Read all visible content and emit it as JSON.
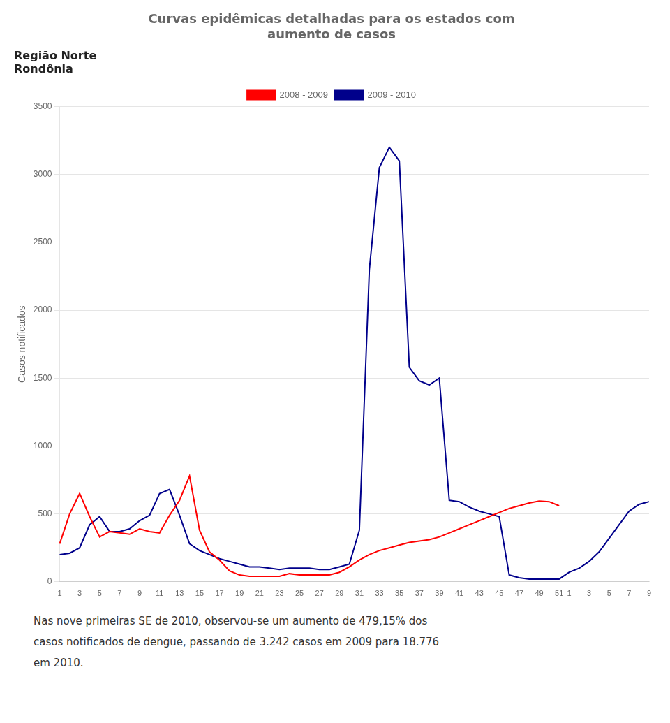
{
  "chart_data": {
    "type": "line",
    "title": [
      "Curvas epidêmicas detalhadas para os estados com",
      "aumento de casos"
    ],
    "subtitle": [
      "Região Norte",
      "Rondônia"
    ],
    "y_label": "Casos notificados",
    "categories": [
      "1",
      null,
      "3",
      null,
      "5",
      null,
      "7",
      null,
      "9",
      null,
      "11",
      null,
      "13",
      null,
      "15",
      null,
      "17",
      null,
      "19",
      null,
      "21",
      null,
      "23",
      null,
      "25",
      null,
      "27",
      null,
      "29",
      null,
      "31",
      null,
      "33",
      null,
      "35",
      null,
      "37",
      null,
      "39",
      null,
      "41",
      null,
      "43",
      null,
      "45",
      null,
      "47",
      null,
      "49",
      null,
      "51",
      "1",
      null,
      "3",
      null,
      "5",
      null,
      "7",
      null,
      "9"
    ],
    "series": [
      {
        "name": "2008 - 2009",
        "color": "#ff0000",
        "values": [
          280,
          500,
          650,
          480,
          330,
          370,
          360,
          350,
          390,
          370,
          360,
          490,
          600,
          780,
          380,
          220,
          160,
          80,
          50,
          40,
          40,
          40,
          40,
          60,
          50,
          50,
          50,
          50,
          70,
          110,
          160,
          200,
          230,
          250,
          270,
          290,
          300,
          310,
          330,
          360,
          390,
          420,
          450,
          480,
          510,
          540,
          560,
          580,
          595,
          590,
          560,
          null,
          null,
          null,
          null,
          null,
          null,
          null,
          null,
          null
        ]
      },
      {
        "name": "2009 - 2010",
        "color": "#00008B",
        "values": [
          200,
          210,
          250,
          420,
          480,
          370,
          370,
          390,
          450,
          490,
          650,
          680,
          490,
          280,
          230,
          200,
          170,
          150,
          130,
          110,
          110,
          100,
          90,
          100,
          100,
          100,
          90,
          90,
          110,
          130,
          380,
          2300,
          3050,
          3200,
          3100,
          1580,
          1480,
          1450,
          1500,
          600,
          590,
          550,
          520,
          500,
          480,
          50,
          30,
          20,
          20,
          20,
          20,
          70,
          100,
          150,
          220,
          320,
          420,
          520,
          570,
          590
        ]
      }
    ],
    "ylim": [
      0,
      3500
    ],
    "yticks": [
      0,
      500,
      1000,
      1500,
      2000,
      2500,
      3000,
      3500
    ],
    "grid": true,
    "legend": "top",
    "annotations": [
      "Nas nove primeiras SE de 2010, observou-se um aumento de 479,15% dos",
      "casos notificados de dengue, passando de 3.242 casos em 2009 para 18.776",
      "em 2010."
    ]
  }
}
